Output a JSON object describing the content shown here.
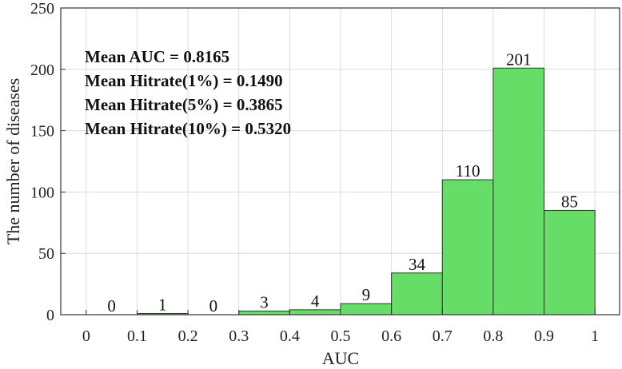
{
  "chart_data": {
    "type": "bar",
    "xlabel": "AUC",
    "ylabel": "The number of diseases",
    "bin_edges": [
      0,
      0.1,
      0.2,
      0.3,
      0.4,
      0.5,
      0.6,
      0.7,
      0.8,
      0.9,
      1
    ],
    "values": [
      0,
      1,
      0,
      3,
      4,
      9,
      34,
      110,
      201,
      85
    ],
    "xlim": [
      -0.05,
      1.05
    ],
    "ylim": [
      0,
      250
    ],
    "xticks": [
      "0",
      "0.1",
      "0.2",
      "0.3",
      "0.4",
      "0.5",
      "0.6",
      "0.7",
      "0.8",
      "0.9",
      "1"
    ],
    "yticks": [
      "0",
      "50",
      "100",
      "150",
      "200",
      "250"
    ],
    "grid": true,
    "bar_color": "#66dd66",
    "annotations": [
      "Mean AUC = 0.8165",
      "Mean Hitrate(1%) = 0.1490",
      "Mean Hitrate(5%) = 0.3865",
      "Mean Hitrate(10%) = 0.5320"
    ]
  }
}
